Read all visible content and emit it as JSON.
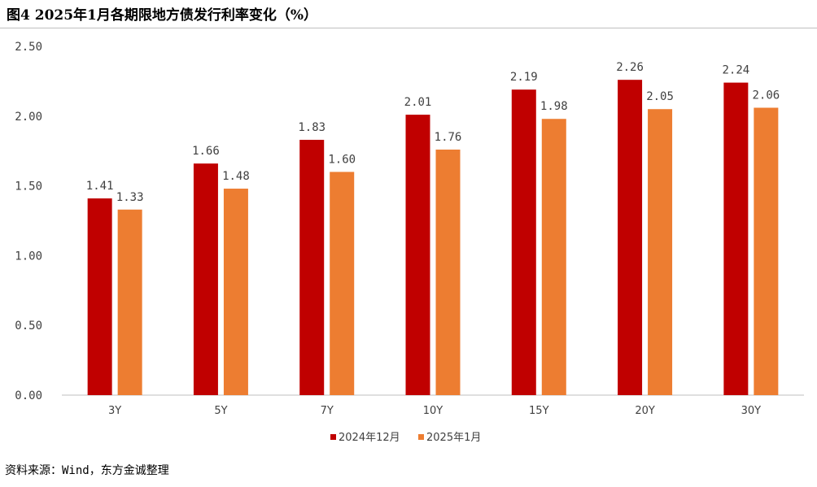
{
  "figure": {
    "title": "图4 2025年1月各期限地方债发行利率变化（%）",
    "source": "资料来源：Wind，东方金诚整理"
  },
  "chart_data": {
    "type": "bar",
    "categories": [
      "3Y",
      "5Y",
      "7Y",
      "10Y",
      "15Y",
      "20Y",
      "30Y"
    ],
    "series": [
      {
        "name": "2024年12月",
        "values": [
          1.41,
          1.66,
          1.83,
          2.01,
          2.19,
          2.26,
          2.24
        ],
        "color": "#C00000"
      },
      {
        "name": "2025年1月",
        "values": [
          1.33,
          1.48,
          1.6,
          1.76,
          1.98,
          2.05,
          2.06
        ],
        "color": "#ED7D31"
      }
    ],
    "ylim": [
      0,
      2.5
    ],
    "yticks": [
      "0.00",
      "0.50",
      "1.00",
      "1.50",
      "2.00",
      "2.50"
    ],
    "grid": false,
    "legend_position": "bottom-center",
    "data_labels": true
  }
}
